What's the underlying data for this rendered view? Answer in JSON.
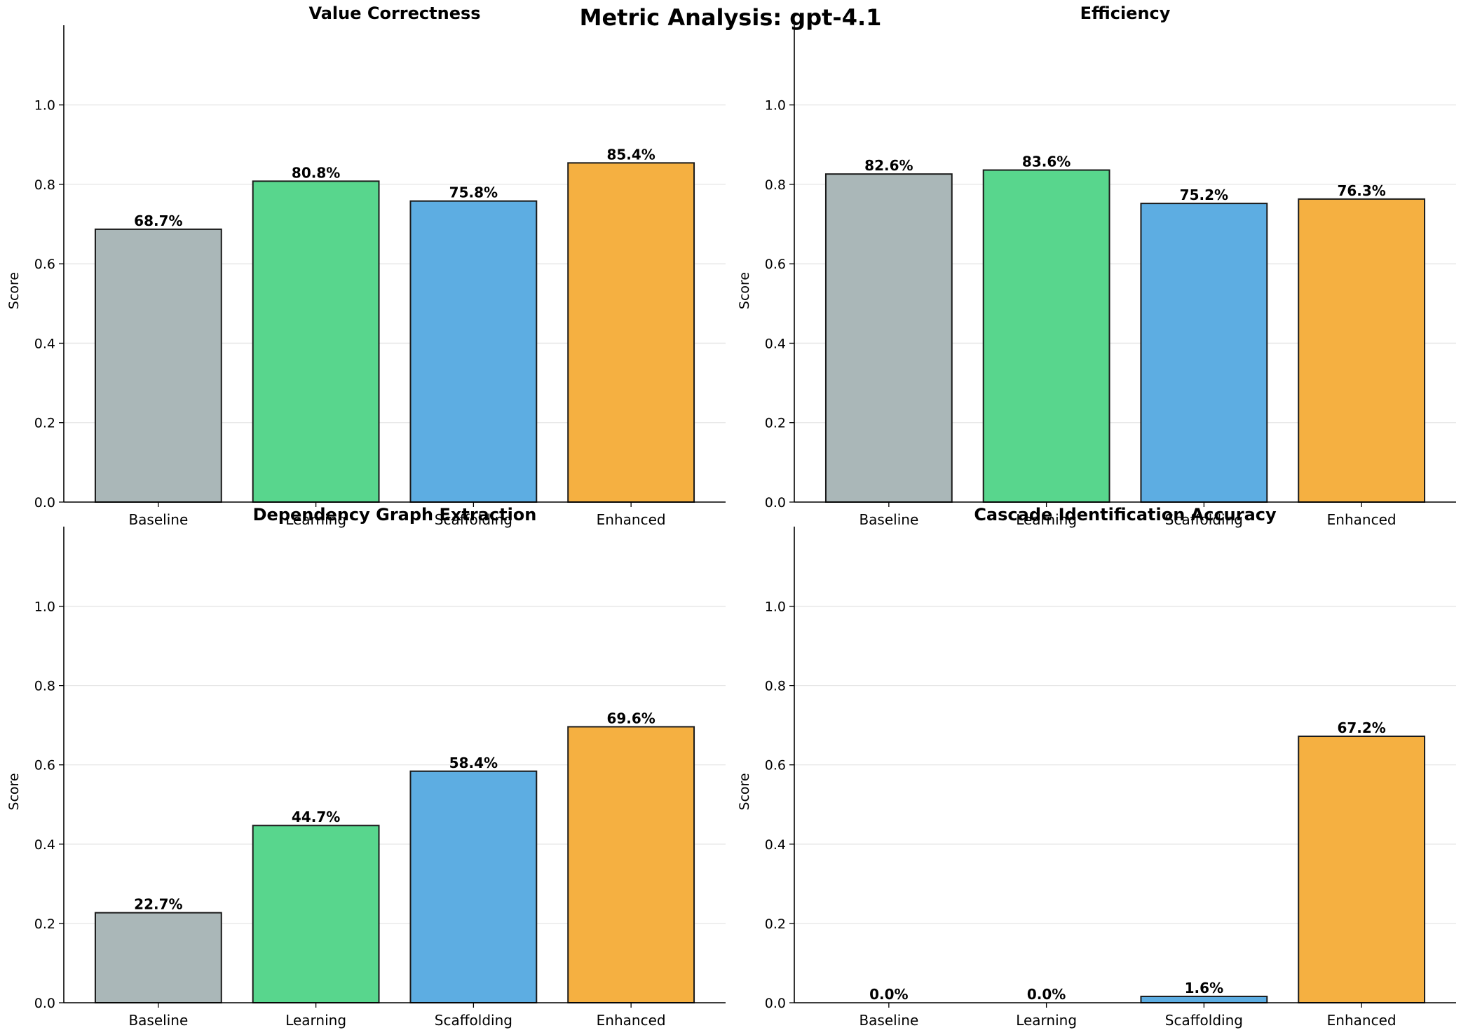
{
  "title": "Metric Analysis: gpt-4.1",
  "colors": {
    "Baseline": "#aab7b8",
    "Learning": "#58d68d",
    "Scaffolding": "#5dade2",
    "Enhanced": "#f5b041",
    "edge": "#1a1a1a",
    "grid": "#e6e6e6"
  },
  "chart_data": [
    {
      "type": "bar",
      "title": "Value Correctness",
      "ylabel": "Score",
      "categories": [
        "Baseline",
        "Learning",
        "Scaffolding",
        "Enhanced"
      ],
      "values": [
        0.687,
        0.808,
        0.758,
        0.854
      ],
      "data_labels": [
        "68.7%",
        "80.8%",
        "75.8%",
        "85.4%"
      ],
      "ylim": [
        0,
        1.1
      ],
      "yticks": [
        "0.0",
        "0.2",
        "0.4",
        "0.6",
        "0.8",
        "1.0"
      ],
      "grid": "y"
    },
    {
      "type": "bar",
      "title": "Efficiency",
      "ylabel": "Score",
      "categories": [
        "Baseline",
        "Learning",
        "Scaffolding",
        "Enhanced"
      ],
      "values": [
        0.826,
        0.836,
        0.752,
        0.763
      ],
      "data_labels": [
        "82.6%",
        "83.6%",
        "75.2%",
        "76.3%"
      ],
      "ylim": [
        0,
        1.1
      ],
      "yticks": [
        "0.0",
        "0.2",
        "0.4",
        "0.6",
        "0.8",
        "1.0"
      ],
      "grid": "y"
    },
    {
      "type": "bar",
      "title": "Dependency Graph Extraction",
      "ylabel": "Score",
      "categories": [
        "Baseline",
        "Learning",
        "Scaffolding",
        "Enhanced"
      ],
      "values": [
        0.227,
        0.447,
        0.584,
        0.696
      ],
      "data_labels": [
        "22.7%",
        "44.7%",
        "58.4%",
        "69.6%"
      ],
      "ylim": [
        0,
        1.1
      ],
      "yticks": [
        "0.0",
        "0.2",
        "0.4",
        "0.6",
        "0.8",
        "1.0"
      ],
      "grid": "y"
    },
    {
      "type": "bar",
      "title": "Cascade Identification Accuracy",
      "ylabel": "Score",
      "categories": [
        "Baseline",
        "Learning",
        "Scaffolding",
        "Enhanced"
      ],
      "values": [
        0.0,
        0.0,
        0.016,
        0.672
      ],
      "data_labels": [
        "0.0%",
        "0.0%",
        "1.6%",
        "67.2%"
      ],
      "ylim": [
        0,
        1.1
      ],
      "yticks": [
        "0.0",
        "0.2",
        "0.4",
        "0.6",
        "0.8",
        "1.0"
      ],
      "grid": "y"
    }
  ]
}
